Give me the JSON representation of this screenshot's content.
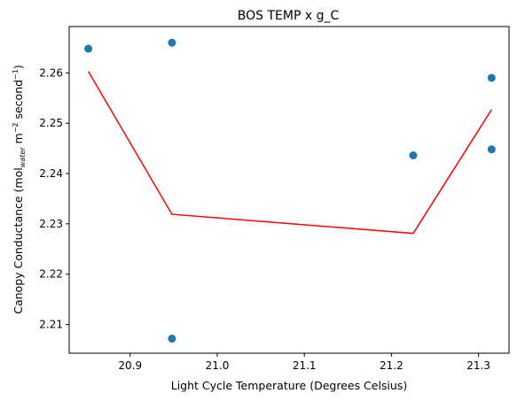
{
  "chart_data": {
    "type": "scatter",
    "title": "BOS TEMP x g_C",
    "xlabel": "Light Cycle Temperature (Degrees Celsius)",
    "ylabel": {
      "prefix": "Canopy Conductance (mol",
      "sub": "water",
      "mid1": " m",
      "sup1": "−2",
      "mid2": " second",
      "sup2": "−1",
      "suffix": ")"
    },
    "xlim": [
      20.83,
      21.335
    ],
    "ylim": [
      2.2043,
      2.2692
    ],
    "xticks": [
      20.9,
      21.0,
      21.1,
      21.2,
      21.3
    ],
    "xtick_labels": [
      "20.9",
      "21.0",
      "21.1",
      "21.2",
      "21.3"
    ],
    "yticks": [
      2.21,
      2.22,
      2.23,
      2.24,
      2.25,
      2.26
    ],
    "ytick_labels": [
      "2.21",
      "2.22",
      "2.23",
      "2.24",
      "2.25",
      "2.26"
    ],
    "grid": false,
    "series": [
      {
        "kind": "scatter",
        "color": "#1f77b4",
        "x": [
          20.852,
          20.948,
          20.948,
          21.225,
          21.315,
          21.315
        ],
        "y": [
          2.2648,
          2.266,
          2.2072,
          2.2436,
          2.259,
          2.2448
        ]
      },
      {
        "kind": "line",
        "color": "#ff0000",
        "x": [
          20.852,
          20.948,
          21.225,
          21.315
        ],
        "y": [
          2.2603,
          2.2319,
          2.2281,
          2.2527
        ]
      }
    ]
  }
}
